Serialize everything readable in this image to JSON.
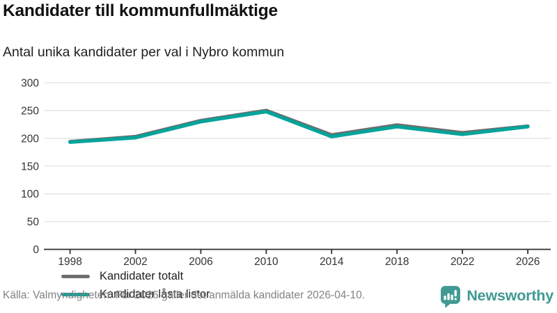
{
  "header": {
    "title": "Kandidater till kommunfullmäktige",
    "subtitle": "Antal unika kandidater per val i Nybro kommun"
  },
  "chart_data": {
    "type": "line",
    "title": "Kandidater till kommunfullmäktige",
    "subtitle": "Antal unika kandidater per val i Nybro kommun",
    "x": [
      1998,
      2002,
      2006,
      2010,
      2014,
      2018,
      2022,
      2026
    ],
    "series": [
      {
        "name": "Kandidater totalt",
        "color": "#6e6e6e",
        "values": [
          194,
          203,
          232,
          250,
          206,
          224,
          210,
          222
        ]
      },
      {
        "name": "Kandidater låsta listor",
        "color": "#00a49a",
        "values": [
          193,
          201,
          230,
          248,
          203,
          221,
          207,
          221
        ]
      }
    ],
    "ylim": [
      0,
      300
    ],
    "yticks": [
      0,
      50,
      100,
      150,
      200,
      250,
      300
    ],
    "grid": "horizontal",
    "legend_position": "inside-bottom-left",
    "axis_color": "#2e2e2e",
    "gridline_color": "#e2e2e2",
    "tick_label_color": "#333333"
  },
  "footer": {
    "source": "Källa: Valmyndigheten. För 2026 gäller det anmälda kandidater 2026-04-10."
  },
  "brand": {
    "name": "Newsworthy",
    "color": "#3f9a93",
    "icon": "newsworthy-chart-bubble-icon"
  }
}
